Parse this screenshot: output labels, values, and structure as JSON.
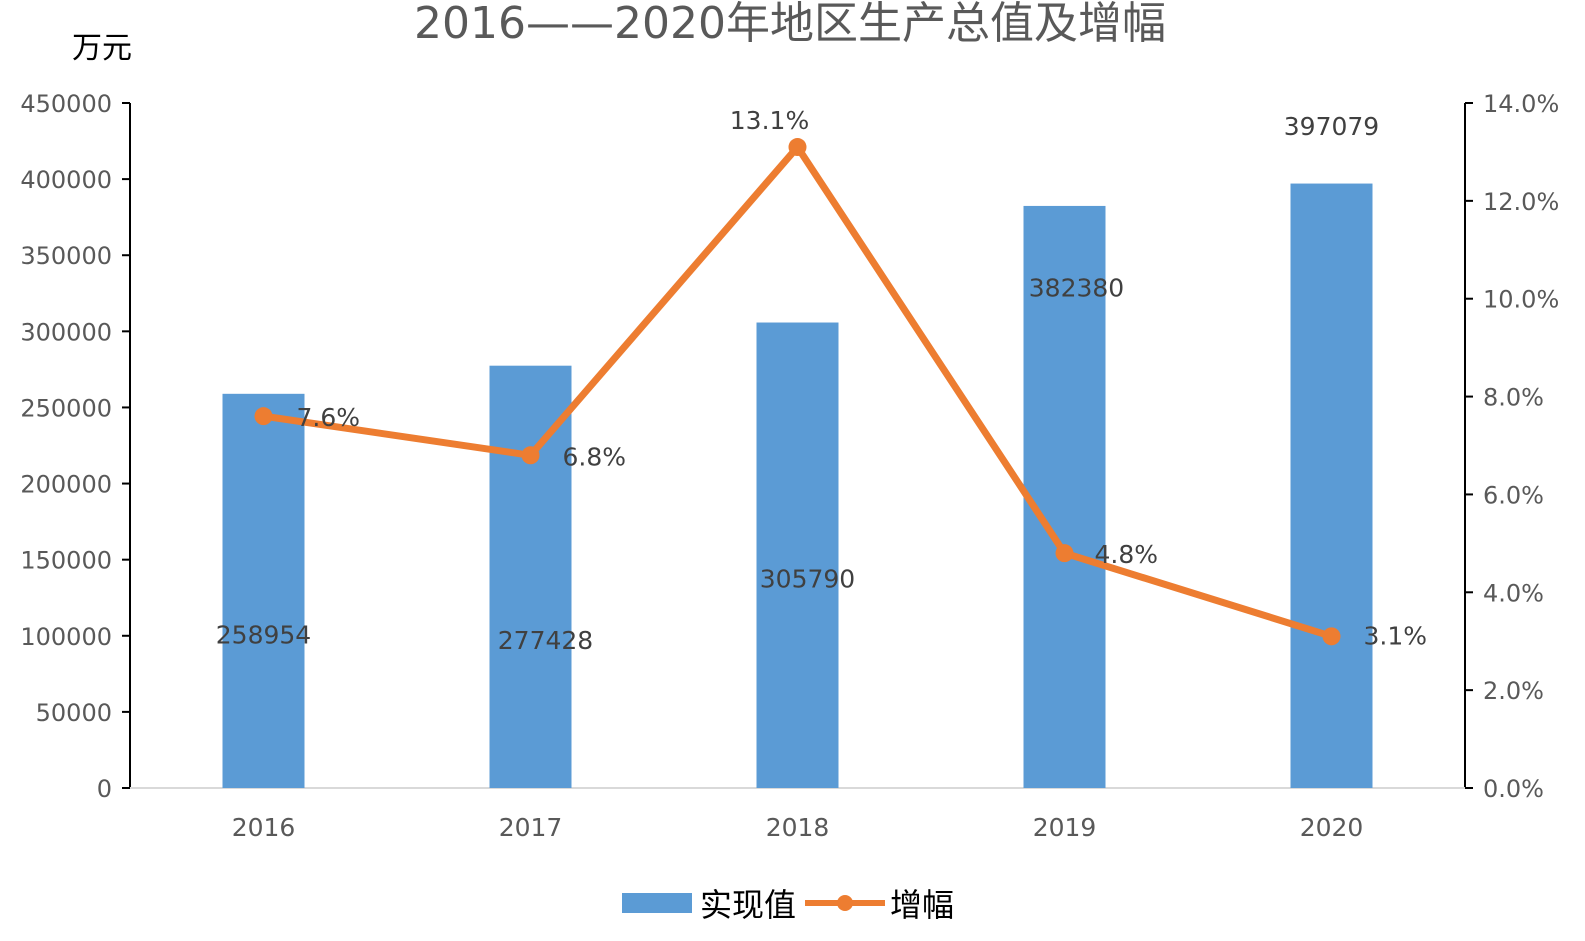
{
  "chart_data": {
    "type": "bar",
    "title": "2016——2020年地区生产总值及增幅",
    "unit_label": "万元",
    "categories": [
      "2016",
      "2017",
      "2018",
      "2019",
      "2020"
    ],
    "series": [
      {
        "name": "实现值",
        "type": "bar",
        "axis": "left",
        "color": "#5b9bd5",
        "values": [
          258954,
          277428,
          305790,
          382380,
          397079
        ],
        "labels": [
          "258954",
          "277428",
          "305790",
          "382380",
          "397079"
        ]
      },
      {
        "name": "增幅",
        "type": "line",
        "axis": "right",
        "color": "#ed7d31",
        "values": [
          7.6,
          6.8,
          13.1,
          4.8,
          3.1
        ],
        "labels": [
          "7.6%",
          "6.8%",
          "13.1%",
          "4.8%",
          "3.1%"
        ]
      }
    ],
    "y_left": {
      "ylim": [
        0,
        450000
      ],
      "ticks": [
        "0",
        "50000",
        "100000",
        "150000",
        "200000",
        "250000",
        "300000",
        "350000",
        "400000",
        "450000"
      ]
    },
    "y_right": {
      "ylim": [
        0,
        14
      ],
      "ticks": [
        "0.0%",
        "2.0%",
        "4.0%",
        "6.0%",
        "8.0%",
        "10.0%",
        "12.0%",
        "14.0%"
      ]
    },
    "grid": false,
    "legend": "bottom-center"
  }
}
